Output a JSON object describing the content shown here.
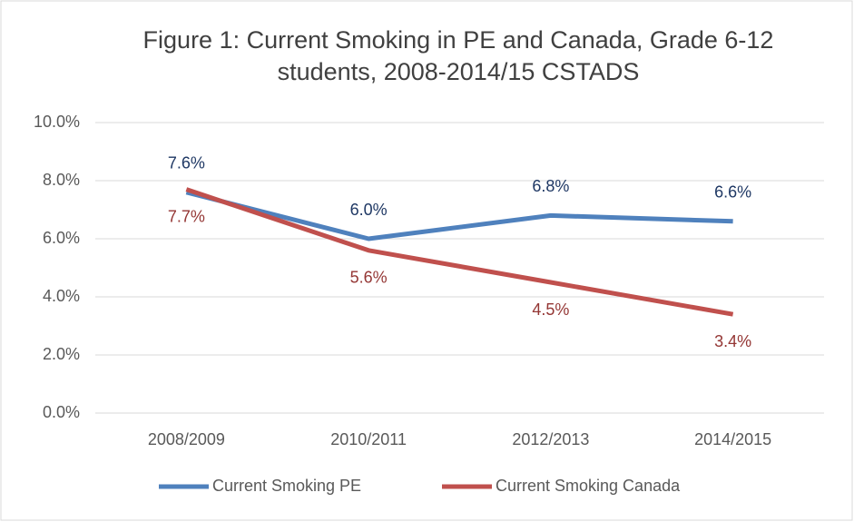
{
  "chart_data": {
    "type": "line",
    "title": [
      "Figure 1: Current Smoking in PE and Canada, Grade 6-12",
      "students, 2008-2014/15 CSTADS"
    ],
    "categories": [
      "2008/2009",
      "2010/2011",
      "2012/2013",
      "2014/2015"
    ],
    "series": [
      {
        "name": "Current Smoking PE",
        "color": "#4f81bd",
        "label_color": "#1f3864",
        "values": [
          7.6,
          6.0,
          6.8,
          6.6
        ],
        "value_labels": [
          "7.6%",
          "6.0%",
          "6.8%",
          "6.6%"
        ]
      },
      {
        "name": "Current Smoking Canada",
        "color": "#c0504d",
        "label_color": "#943634",
        "values": [
          7.7,
          5.6,
          4.5,
          3.4
        ],
        "value_labels": [
          "7.7%",
          "5.6%",
          "4.5%",
          "3.4%"
        ]
      }
    ],
    "ylim": [
      0,
      10
    ],
    "yticks": [
      {
        "value": 0,
        "label": "0.0%"
      },
      {
        "value": 2,
        "label": "2.0%"
      },
      {
        "value": 4,
        "label": "4.0%"
      },
      {
        "value": 6,
        "label": "6.0%"
      },
      {
        "value": 8,
        "label": "8.0%"
      },
      {
        "value": 10,
        "label": "10.0%"
      }
    ],
    "grid": true,
    "legend": "bottom"
  }
}
